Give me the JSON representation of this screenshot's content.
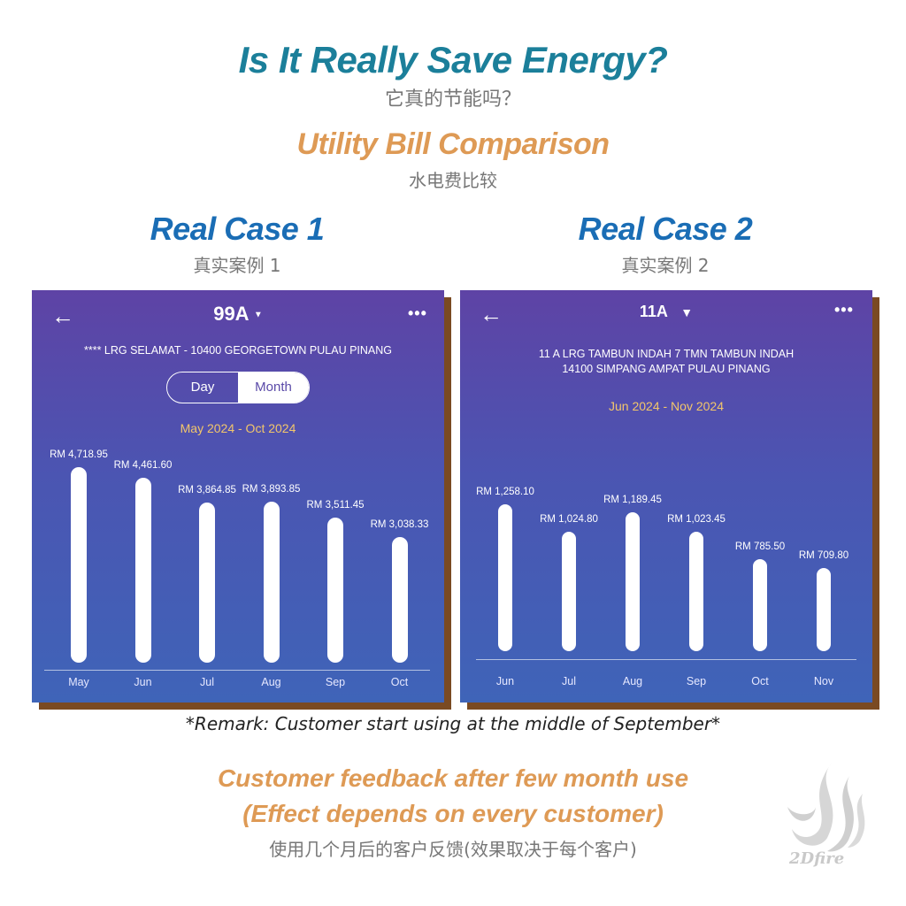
{
  "header": {
    "title": "Is It Really Save Energy?",
    "title_cn": "它真的节能吗？",
    "subtitle": "Utility Bill Comparison",
    "subtitle_cn": "水电费比较"
  },
  "cases": [
    {
      "title": "Real Case 1",
      "title_cn": "真实案例 1",
      "app": {
        "back_icon": "arrow-left-icon",
        "meter": "99A",
        "dropdown_icon": "caret-down-icon",
        "more_icon": "more-dots-icon",
        "address": "**** LRG SELAMAT - 10400 GEORGETOWN PULAU PINANG",
        "toggle": {
          "day": "Day",
          "month": "Month",
          "selected": "Month"
        },
        "range": "May 2024 - Oct 2024"
      }
    },
    {
      "title": "Real Case 2",
      "title_cn": "真实案例 2",
      "app": {
        "back_icon": "arrow-left-icon",
        "meter": "11A",
        "dropdown_icon": "caret-down-icon",
        "more_icon": "more-dots-icon",
        "address_line1": "11 A LRG TAMBUN INDAH 7 TMN TAMBUN INDAH",
        "address_line2": "14100 SIMPANG AMPAT PULAU PINANG",
        "range": "Jun 2024 - Nov 2024"
      }
    }
  ],
  "chart_data": [
    {
      "type": "bar",
      "categories": [
        "May",
        "Jun",
        "Jul",
        "Aug",
        "Sep",
        "Oct"
      ],
      "values": [
        4718.95,
        4461.6,
        3864.85,
        3893.85,
        3511.45,
        3038.33
      ],
      "labels": [
        "RM 4,718.95",
        "RM 4,461.60",
        "RM 3,864.85",
        "RM 3,893.85",
        "RM 3,511.45",
        "RM 3,038.33"
      ],
      "ylim": [
        0,
        5000
      ]
    },
    {
      "type": "bar",
      "categories": [
        "Jun",
        "Jul",
        "Aug",
        "Sep",
        "Oct",
        "Nov"
      ],
      "values": [
        1258.1,
        1024.8,
        1189.45,
        1023.45,
        785.5,
        709.8
      ],
      "labels": [
        "RM 1,258.10",
        "RM 1,024.80",
        "RM 1,189.45",
        "RM 1,023.45",
        "RM 785.50",
        "RM 709.80"
      ],
      "ylim": [
        0,
        1350
      ]
    }
  ],
  "remark": "*Remark: Customer start using at the middle of September*",
  "feedback": {
    "line1": "Customer feedback after few month use",
    "line2": "(Effect depends on every customer)",
    "line_cn": "使用几个月后的客户反馈(效果取决于每个客户)"
  },
  "logo": {
    "text": "2Dfire"
  },
  "colors": {
    "title": "#1b7f9a",
    "accent_orange": "#de9a55",
    "case_blue": "#1a6db5",
    "range_yellow": "#f2c66b"
  }
}
